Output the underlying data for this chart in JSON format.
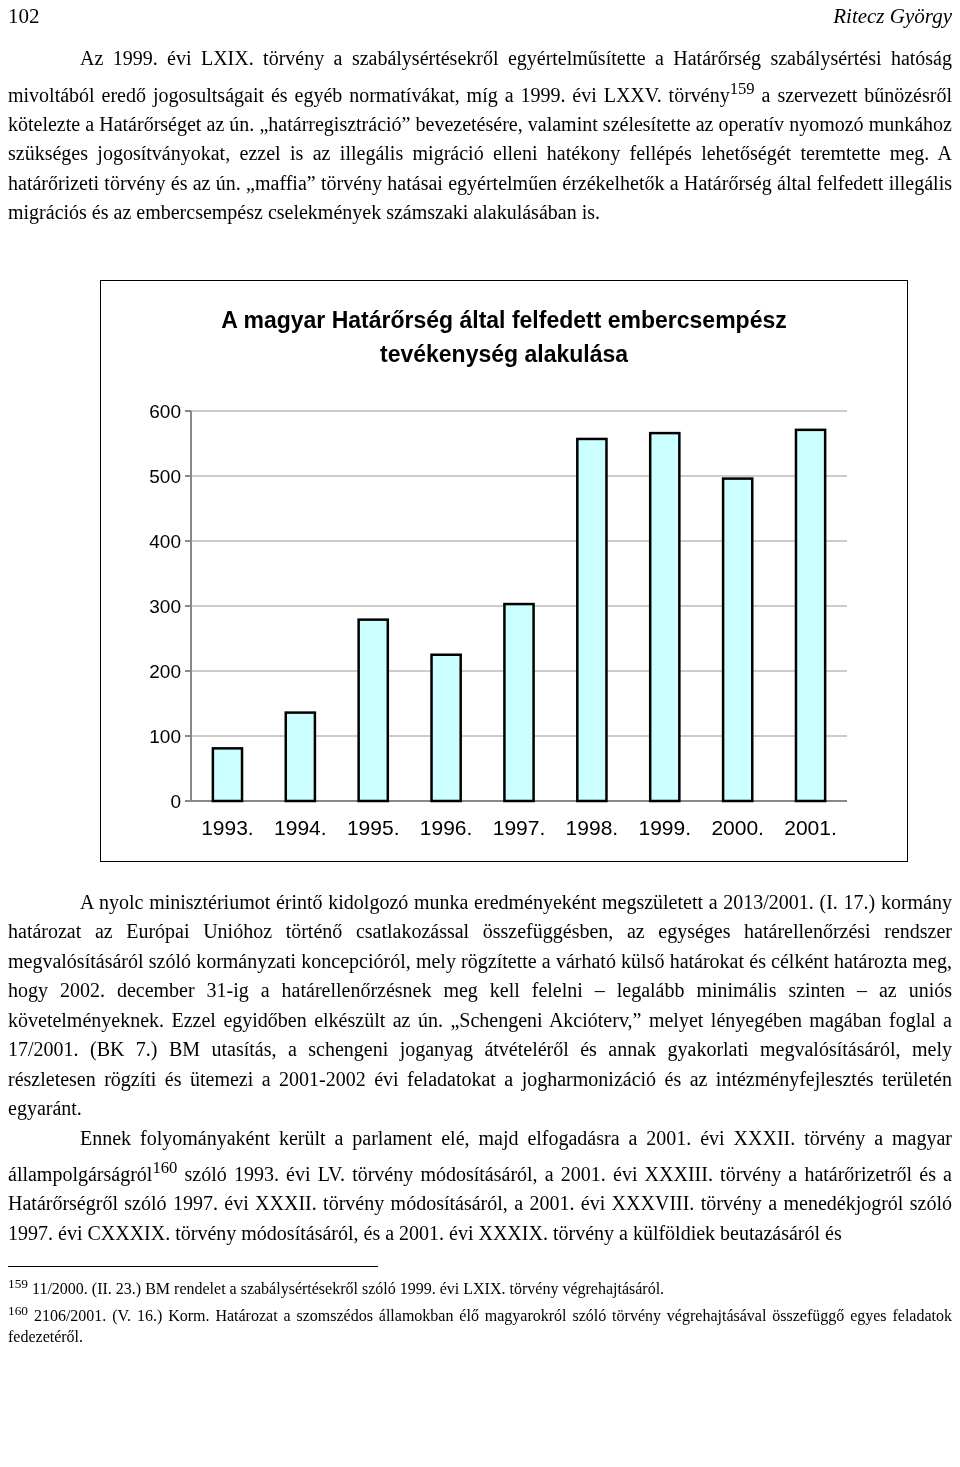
{
  "chart_data": {
    "type": "bar",
    "title": "A magyar Határőrség által felfedett embercsempész tevékenység alakulása",
    "categories": [
      "1993.",
      "1994.",
      "1995.",
      "1996.",
      "1997.",
      "1998.",
      "1999.",
      "2000.",
      "2001."
    ],
    "values": [
      81,
      136,
      279,
      225,
      303,
      557,
      566,
      496,
      571
    ],
    "color": "#ccffff",
    "ylim": [
      0,
      600
    ],
    "yticks": [
      0,
      100,
      200,
      300,
      400,
      500,
      600
    ],
    "grid": "y",
    "annotations": [
      "102",
      "Ritecz György",
      "Az 1999. évi LXIX. törvény a szabálysértésekről egyértelműsítette a Határőrség szabálysértési hatóság mivoltából eredő jogosultságait és egyéb normatívákat, míg a 1999. évi LXXV. törvény$^{159}$ a szervezett bűnözésről kötelezte a Határőrséget az ún. „határregisztráció” bevezetésére, valamint szélesítette az operatív nyomozó munkához szükséges jogosítványokat, ezzel is az illegális migráció elleni hatékony fellépés lehetőségét teremtette meg. A határőrizeti törvény és az ún. „maffia” törvény hatásai egyértelműen érzékelhetők a Határőrség által felfedett illegális migrációs és az embercsempész cselekmények számszaki alakulásában is.",
      "A nyolc minisztériumot érintő kidolgozó munka eredményeként megszületett a 2013/2001. (I. 17.) kormány határozat az Európai Unióhoz történő csatlakozással összefüggésben, az egységes határellenőrzési rendszer megvalósításáról szóló kormányzati koncepcióról, mely rögzítette a várható külső határokat és célként határozta meg, hogy 2002. december 31-ig a határellenőrzésnek meg kell felelni – legalább minimális szinten – az uniós követelményeknek. Ezzel egyidőben elkészült az ún. „Schengeni Akcióterv,” melyet lényegében magában foglal a 17/2001. (BK 7.) BM utasítás, a schengeni joganyag átvételéről és annak gyakorlati megvalósításáról, mely részletesen rögzíti és ütemezi a 2001-2002 évi feladatokat a jogharmonizáció és az intézményfejlesztés területén egyaránt.",
      "Ennek folyományaként került a parlament elé, majd elfogadásra a 2001. évi XXXII. törvény a magyar állampolgárságról$^{160}$ szóló 1993. évi LV. törvény módosításáról, a 2001. évi XXXIII. törvény a határőrizetről és a Határőrségről szóló 1997. évi XXXII. törvény módosításáról, a 2001. évi XXXVIII. törvény a menedékjogról szóló 1997. évi CXXXIX. törvény módosításáról, és a 2001. évi XXXIX. törvény a külföldiek beutazásáról és",
      "$^{159}$ 11/2000. (II. 23.) BM rendelet a szabálysértésekről szóló 1999. évi LXIX. törvény végrehajtásáról.",
      "$^{160}$ 2106/2001. (V. 16.) Korm. Határozat a szomszédos államokban élő magyarokról szóló törvény végrehajtásával összefüggő egyes feladatok fedezetéről."
    ]
  }
}
